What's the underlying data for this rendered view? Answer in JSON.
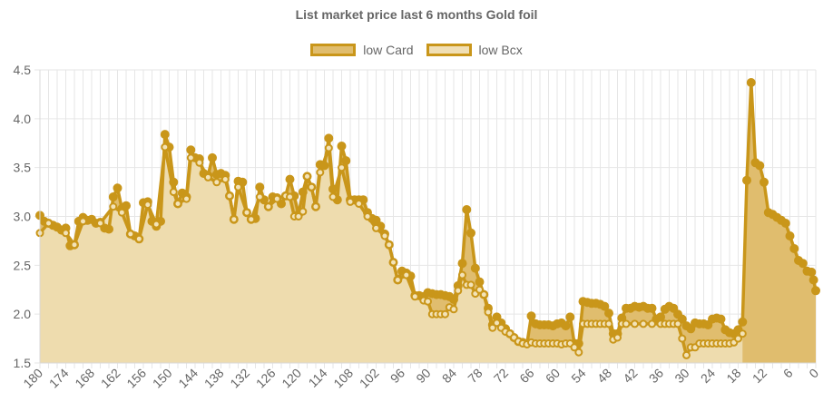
{
  "chart_data": {
    "type": "line",
    "title": "List market price last 6 months Gold foil",
    "xlabel": "",
    "ylabel": "",
    "x_range": [
      180,
      0
    ],
    "ylim": [
      1.5,
      4.5
    ],
    "y_ticks": [
      "1.5",
      "2.0",
      "2.5",
      "3.0",
      "3.5",
      "4.0",
      "4.5"
    ],
    "x_ticks": [
      "180",
      "174",
      "168",
      "162",
      "156",
      "150",
      "144",
      "138",
      "132",
      "126",
      "120",
      "114",
      "108",
      "102",
      "96",
      "90",
      "84",
      "78",
      "72",
      "66",
      "60",
      "54",
      "48",
      "42",
      "36",
      "30",
      "24",
      "18",
      "12",
      "6",
      "0"
    ],
    "grid": true,
    "legend_position": "top",
    "colors": {
      "line": "#c9961a",
      "fill_card": "#e0bd6e",
      "fill_bcx": "#f0dfb5",
      "grid": "#e6e6e6"
    },
    "series": [
      {
        "name": "low Card",
        "color": "#c9961a",
        "fill": "#e0bd6e",
        "points": [
          [
            180,
            3.01
          ],
          [
            179,
            2.95
          ],
          [
            178,
            2.93
          ],
          [
            177,
            2.91
          ],
          [
            176,
            2.89
          ],
          [
            175,
            2.86
          ],
          [
            174,
            2.88
          ],
          [
            173,
            2.7
          ],
          [
            172,
            2.71
          ],
          [
            171,
            2.95
          ],
          [
            170,
            2.99
          ],
          [
            169,
            2.96
          ],
          [
            168,
            2.97
          ],
          [
            167,
            2.93
          ],
          [
            166,
            2.94
          ],
          [
            165,
            2.88
          ],
          [
            164,
            2.87
          ],
          [
            163,
            3.2
          ],
          [
            162,
            3.29
          ],
          [
            161,
            3.08
          ],
          [
            160,
            3.11
          ],
          [
            159,
            2.82
          ],
          [
            158,
            2.8
          ],
          [
            157,
            2.77
          ],
          [
            156,
            3.14
          ],
          [
            155,
            3.15
          ],
          [
            154,
            2.95
          ],
          [
            153,
            2.9
          ],
          [
            152,
            2.95
          ],
          [
            151,
            3.84
          ],
          [
            150,
            3.71
          ],
          [
            149,
            3.35
          ],
          [
            148,
            3.13
          ],
          [
            147,
            3.24
          ],
          [
            146,
            3.2
          ],
          [
            145,
            3.68
          ],
          [
            144,
            3.6
          ],
          [
            143,
            3.59
          ],
          [
            142,
            3.44
          ],
          [
            141,
            3.42
          ],
          [
            140,
            3.6
          ],
          [
            139,
            3.43
          ],
          [
            138,
            3.44
          ],
          [
            137,
            3.42
          ],
          [
            136,
            3.21
          ],
          [
            135,
            2.97
          ],
          [
            134,
            3.36
          ],
          [
            133,
            3.35
          ],
          [
            132,
            3.04
          ],
          [
            131,
            2.97
          ],
          [
            130,
            2.98
          ],
          [
            129,
            3.3
          ],
          [
            128,
            3.17
          ],
          [
            127,
            3.1
          ],
          [
            126,
            3.2
          ],
          [
            125,
            3.19
          ],
          [
            124,
            3.13
          ],
          [
            123,
            3.21
          ],
          [
            122,
            3.38
          ],
          [
            121,
            3.21
          ],
          [
            120,
            3.02
          ],
          [
            119,
            3.25
          ],
          [
            118,
            3.41
          ],
          [
            117,
            3.3
          ],
          [
            116,
            3.1
          ],
          [
            115,
            3.53
          ],
          [
            114,
            3.52
          ],
          [
            113,
            3.8
          ],
          [
            112,
            3.28
          ],
          [
            111,
            3.17
          ],
          [
            110,
            3.72
          ],
          [
            109,
            3.57
          ],
          [
            108,
            3.17
          ],
          [
            107,
            3.17
          ],
          [
            106,
            3.17
          ],
          [
            105,
            3.17
          ],
          [
            104,
            3.04
          ],
          [
            103,
            2.98
          ],
          [
            102,
            2.96
          ],
          [
            101,
            2.9
          ],
          [
            100,
            2.82
          ],
          [
            99,
            2.71
          ],
          [
            98,
            2.53
          ],
          [
            97,
            2.35
          ],
          [
            96,
            2.44
          ],
          [
            95,
            2.42
          ],
          [
            94,
            2.39
          ],
          [
            93,
            2.19
          ],
          [
            92,
            2.19
          ],
          [
            91,
            2.18
          ],
          [
            90,
            2.22
          ],
          [
            89,
            2.21
          ],
          [
            88,
            2.2
          ],
          [
            87,
            2.2
          ],
          [
            86,
            2.19
          ],
          [
            85,
            2.18
          ],
          [
            84,
            2.15
          ],
          [
            83,
            2.29
          ],
          [
            82,
            2.52
          ],
          [
            81,
            3.07
          ],
          [
            80,
            2.83
          ],
          [
            79,
            2.47
          ],
          [
            78,
            2.33
          ],
          [
            77,
            2.2
          ],
          [
            76,
            2.06
          ],
          [
            75,
            1.89
          ],
          [
            74,
            1.97
          ],
          [
            73,
            1.91
          ],
          [
            72,
            1.85
          ],
          [
            71,
            1.8
          ],
          [
            70,
            1.76
          ],
          [
            69,
            1.72
          ],
          [
            68,
            1.71
          ],
          [
            67,
            1.7
          ],
          [
            66,
            1.98
          ],
          [
            65,
            1.9
          ],
          [
            64,
            1.89
          ],
          [
            63,
            1.89
          ],
          [
            62,
            1.89
          ],
          [
            61,
            1.88
          ],
          [
            60,
            1.9
          ],
          [
            59,
            1.91
          ],
          [
            58,
            1.88
          ],
          [
            57,
            1.97
          ],
          [
            56,
            1.7
          ],
          [
            55,
            1.7
          ],
          [
            54,
            2.13
          ],
          [
            53,
            2.12
          ],
          [
            52,
            2.11
          ],
          [
            51,
            2.11
          ],
          [
            50,
            2.1
          ],
          [
            49,
            2.08
          ],
          [
            48,
            2.01
          ],
          [
            47,
            1.8
          ],
          [
            46,
            1.8
          ],
          [
            45,
            1.96
          ],
          [
            44,
            2.06
          ],
          [
            43,
            2.06
          ],
          [
            42,
            2.08
          ],
          [
            41,
            2.07
          ],
          [
            40,
            2.08
          ],
          [
            39,
            2.06
          ],
          [
            38,
            2.06
          ],
          [
            37,
            1.95
          ],
          [
            36,
            1.97
          ],
          [
            35,
            2.05
          ],
          [
            34,
            2.08
          ],
          [
            33,
            2.06
          ],
          [
            32,
            2.0
          ],
          [
            31,
            1.95
          ],
          [
            30,
            1.88
          ],
          [
            29,
            1.85
          ],
          [
            28,
            1.91
          ],
          [
            27,
            1.9
          ],
          [
            26,
            1.9
          ],
          [
            25,
            1.89
          ],
          [
            24,
            1.95
          ],
          [
            23,
            1.96
          ],
          [
            22,
            1.95
          ],
          [
            21,
            1.84
          ],
          [
            20,
            1.81
          ],
          [
            19,
            1.8
          ],
          [
            18,
            1.84
          ],
          [
            17,
            1.92
          ],
          [
            16,
            3.37
          ],
          [
            15,
            4.37
          ],
          [
            14,
            3.55
          ],
          [
            13,
            3.52
          ],
          [
            12,
            3.35
          ],
          [
            11,
            3.04
          ],
          [
            10,
            3.02
          ],
          [
            9,
            2.99
          ],
          [
            8,
            2.96
          ],
          [
            7,
            2.93
          ],
          [
            6,
            2.8
          ],
          [
            5,
            2.67
          ],
          [
            4,
            2.55
          ],
          [
            3,
            2.52
          ],
          [
            2,
            2.44
          ],
          [
            1,
            2.43
          ],
          [
            0.5,
            2.35
          ],
          [
            0,
            2.24
          ]
        ]
      },
      {
        "name": "low Bcx",
        "color": "#c9961a",
        "fill": "#f0dfb5",
        "points": [
          [
            180,
            2.83
          ],
          [
            178,
            2.93
          ],
          [
            174,
            2.83
          ],
          [
            172,
            2.71
          ],
          [
            170,
            2.95
          ],
          [
            166,
            2.93
          ],
          [
            163,
            3.1
          ],
          [
            161,
            3.04
          ],
          [
            159,
            2.82
          ],
          [
            157,
            2.77
          ],
          [
            155,
            3.12
          ],
          [
            153,
            2.92
          ],
          [
            151,
            3.71
          ],
          [
            149,
            3.25
          ],
          [
            148,
            3.13
          ],
          [
            146,
            3.18
          ],
          [
            145,
            3.6
          ],
          [
            143,
            3.55
          ],
          [
            141,
            3.4
          ],
          [
            139,
            3.35
          ],
          [
            137,
            3.38
          ],
          [
            136,
            3.21
          ],
          [
            135,
            2.97
          ],
          [
            134,
            3.3
          ],
          [
            132,
            3.04
          ],
          [
            131,
            2.97
          ],
          [
            129,
            3.2
          ],
          [
            127,
            3.1
          ],
          [
            125,
            3.18
          ],
          [
            123,
            3.21
          ],
          [
            122,
            3.2
          ],
          [
            121,
            3.0
          ],
          [
            120,
            3.0
          ],
          [
            119,
            3.05
          ],
          [
            118,
            3.41
          ],
          [
            117,
            3.3
          ],
          [
            116,
            3.1
          ],
          [
            115,
            3.45
          ],
          [
            113,
            3.7
          ],
          [
            112,
            3.2
          ],
          [
            110,
            3.5
          ],
          [
            108,
            3.15
          ],
          [
            106,
            3.13
          ],
          [
            104,
            3.0
          ],
          [
            102,
            2.88
          ],
          [
            100,
            2.8
          ],
          [
            99,
            2.71
          ],
          [
            98,
            2.53
          ],
          [
            97,
            2.35
          ],
          [
            95,
            2.4
          ],
          [
            93,
            2.18
          ],
          [
            91,
            2.14
          ],
          [
            90,
            2.13
          ],
          [
            89,
            2.0
          ],
          [
            88,
            2.0
          ],
          [
            87,
            2.0
          ],
          [
            86,
            2.0
          ],
          [
            85,
            2.07
          ],
          [
            84,
            2.05
          ],
          [
            83,
            2.24
          ],
          [
            82,
            2.4
          ],
          [
            81,
            2.3
          ],
          [
            80,
            2.3
          ],
          [
            79,
            2.21
          ],
          [
            78,
            2.25
          ],
          [
            77,
            2.2
          ],
          [
            76,
            2.02
          ],
          [
            75,
            1.86
          ],
          [
            74,
            1.91
          ],
          [
            73,
            1.86
          ],
          [
            72,
            1.82
          ],
          [
            71,
            1.8
          ],
          [
            70,
            1.76
          ],
          [
            69,
            1.72
          ],
          [
            68,
            1.7
          ],
          [
            67,
            1.69
          ],
          [
            66,
            1.71
          ],
          [
            65,
            1.7
          ],
          [
            64,
            1.7
          ],
          [
            63,
            1.7
          ],
          [
            62,
            1.7
          ],
          [
            61,
            1.7
          ],
          [
            60,
            1.7
          ],
          [
            59,
            1.69
          ],
          [
            58,
            1.7
          ],
          [
            57,
            1.7
          ],
          [
            56,
            1.66
          ],
          [
            55,
            1.61
          ],
          [
            54,
            1.9
          ],
          [
            53,
            1.9
          ],
          [
            52,
            1.9
          ],
          [
            51,
            1.9
          ],
          [
            50,
            1.9
          ],
          [
            49,
            1.9
          ],
          [
            48,
            1.9
          ],
          [
            47,
            1.74
          ],
          [
            46,
            1.76
          ],
          [
            45,
            1.9
          ],
          [
            44,
            1.9
          ],
          [
            42,
            1.9
          ],
          [
            40,
            1.9
          ],
          [
            38,
            1.9
          ],
          [
            36,
            1.9
          ],
          [
            35,
            1.9
          ],
          [
            34,
            1.9
          ],
          [
            33,
            1.9
          ],
          [
            32,
            1.9
          ],
          [
            31,
            1.75
          ],
          [
            30,
            1.58
          ],
          [
            29,
            1.66
          ],
          [
            28,
            1.66
          ],
          [
            27,
            1.7
          ],
          [
            26,
            1.7
          ],
          [
            25,
            1.7
          ],
          [
            24,
            1.7
          ],
          [
            23,
            1.7
          ],
          [
            22,
            1.7
          ],
          [
            21,
            1.7
          ],
          [
            20,
            1.7
          ],
          [
            19,
            1.71
          ],
          [
            18,
            1.75
          ],
          [
            17,
            1.8
          ]
        ]
      }
    ]
  }
}
